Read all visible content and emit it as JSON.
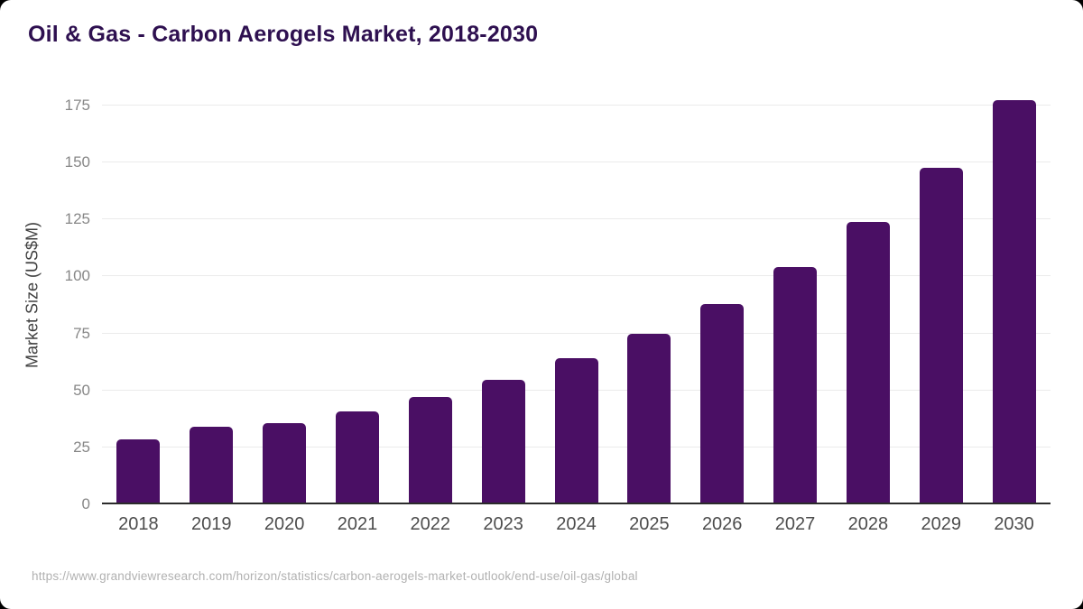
{
  "header": {
    "title": "Oil & Gas - Carbon Aerogels Market, 2018-2030"
  },
  "footer": {
    "source_url": "https://www.grandviewresearch.com/horizon/statistics/carbon-aerogels-market-outlook/end-use/oil-gas/global"
  },
  "chart_data": {
    "type": "bar",
    "title": "Oil & Gas - Carbon Aerogels Market, 2018-2030",
    "categories": [
      "2018",
      "2019",
      "2020",
      "2021",
      "2022",
      "2023",
      "2024",
      "2025",
      "2026",
      "2027",
      "2028",
      "2029",
      "2030"
    ],
    "values": [
      28.4,
      34.0,
      35.6,
      40.9,
      47.0,
      54.5,
      64.2,
      74.8,
      88.1,
      104.0,
      124.0,
      147.6,
      177.2
    ],
    "xlabel": "",
    "ylabel": "Market Size (US$M)",
    "ylim": [
      0,
      175
    ],
    "yticks": [
      0,
      25,
      50,
      75,
      100,
      125,
      150,
      175
    ],
    "grid": true,
    "legend": false,
    "colors": {
      "bar": "#4a0f64",
      "title": "#2e1050",
      "axis_line": "#2b2b2b",
      "gridline": "#ebebeb",
      "x_tick_text": "#4d4d4d",
      "y_tick_text": "#878787",
      "source_text": "#b1b1b1",
      "background": "#ffffff"
    }
  }
}
